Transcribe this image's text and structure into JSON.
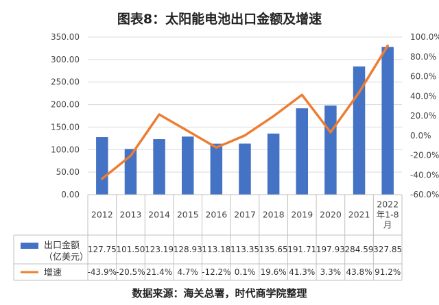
{
  "title": "图表8：太阳能电池出口金额及增速",
  "source": "数据来源：海关总署，时代商学院整理",
  "colors": {
    "bar": "#4472c4",
    "line": "#ed7d31"
  },
  "chart_data": {
    "type": "bar",
    "title": "图表8：太阳能电池出口金额及增速",
    "categories": [
      "2012",
      "2013",
      "2014",
      "2015",
      "2016",
      "2017",
      "2018",
      "2019",
      "2020",
      "2021",
      [
        "2022",
        "年1-8",
        "月"
      ]
    ],
    "series": [
      {
        "name": "出口金额（亿美元）",
        "legend_lines": [
          "出口金额",
          "（亿美元）"
        ],
        "type": "bar",
        "axis": "left",
        "values": [
          127.75,
          101.5,
          123.19,
          128.93,
          113.18,
          113.35,
          135.65,
          191.71,
          197.93,
          284.59,
          327.85
        ],
        "labels": [
          "127.75",
          "101.50",
          "123.19",
          "128.93",
          "113.18",
          "113.35",
          "135.65",
          "191.71",
          "197.93",
          "284.59",
          "327.85"
        ]
      },
      {
        "name": "增速",
        "legend_lines": [
          "增速"
        ],
        "type": "line",
        "axis": "right",
        "values": [
          -43.9,
          -20.5,
          21.4,
          4.7,
          -12.2,
          0.1,
          19.6,
          41.3,
          3.3,
          43.8,
          91.2
        ],
        "labels": [
          "-43.9%",
          "-20.5%",
          "21.4%",
          "4.7%",
          "-12.2%",
          "0.1%",
          "19.6%",
          "41.3%",
          "3.3%",
          "43.8%",
          "91.2%"
        ]
      }
    ],
    "y_left": {
      "min": 0,
      "max": 350,
      "ticks": [
        "0.00",
        "50.00",
        "100.00",
        "150.00",
        "200.00",
        "250.00",
        "300.00",
        "350.00"
      ]
    },
    "y_right": {
      "min": -60,
      "max": 100,
      "ticks": [
        "-60.0%",
        "-40.0%",
        "-20.0%",
        "0.0%",
        "20.0%",
        "40.0%",
        "60.0%",
        "80.0%",
        "100.0%"
      ]
    },
    "grid": true,
    "legend": "bottom-table"
  }
}
